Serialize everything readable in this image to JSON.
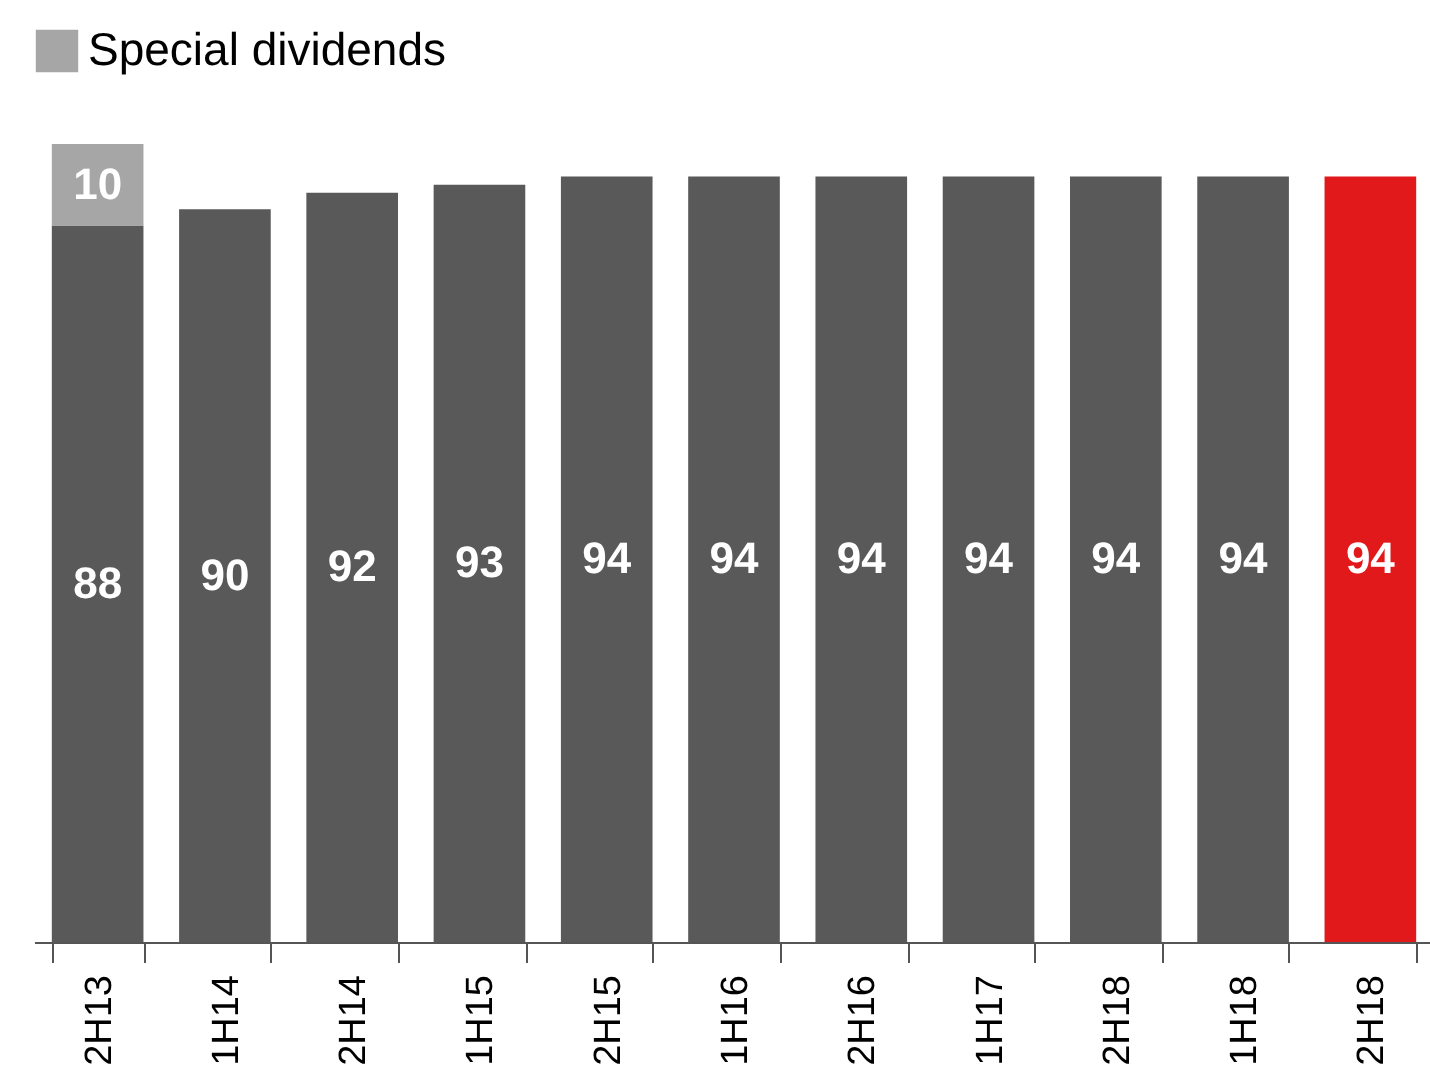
{
  "chart_data": {
    "type": "bar",
    "stacked": true,
    "categories": [
      "2H13",
      "1H14",
      "2H14",
      "1H15",
      "2H15",
      "1H16",
      "2H16",
      "1H17",
      "2H18",
      "1H18",
      "2H18"
    ],
    "series": [
      {
        "colors": [
          "#595959",
          "#595959",
          "#595959",
          "#595959",
          "#595959",
          "#595959",
          "#595959",
          "#595959",
          "#595959",
          "#595959",
          "#e2191b"
        ],
        "values": [
          88,
          90,
          92,
          93,
          94,
          94,
          94,
          94,
          94,
          94,
          94
        ]
      },
      {
        "name": "Special dividends",
        "color": "#a6a6a6",
        "values": [
          10,
          null,
          null,
          null,
          null,
          null,
          null,
          null,
          null,
          null,
          null
        ]
      }
    ],
    "data_labels": true,
    "legend": "top left"
  }
}
